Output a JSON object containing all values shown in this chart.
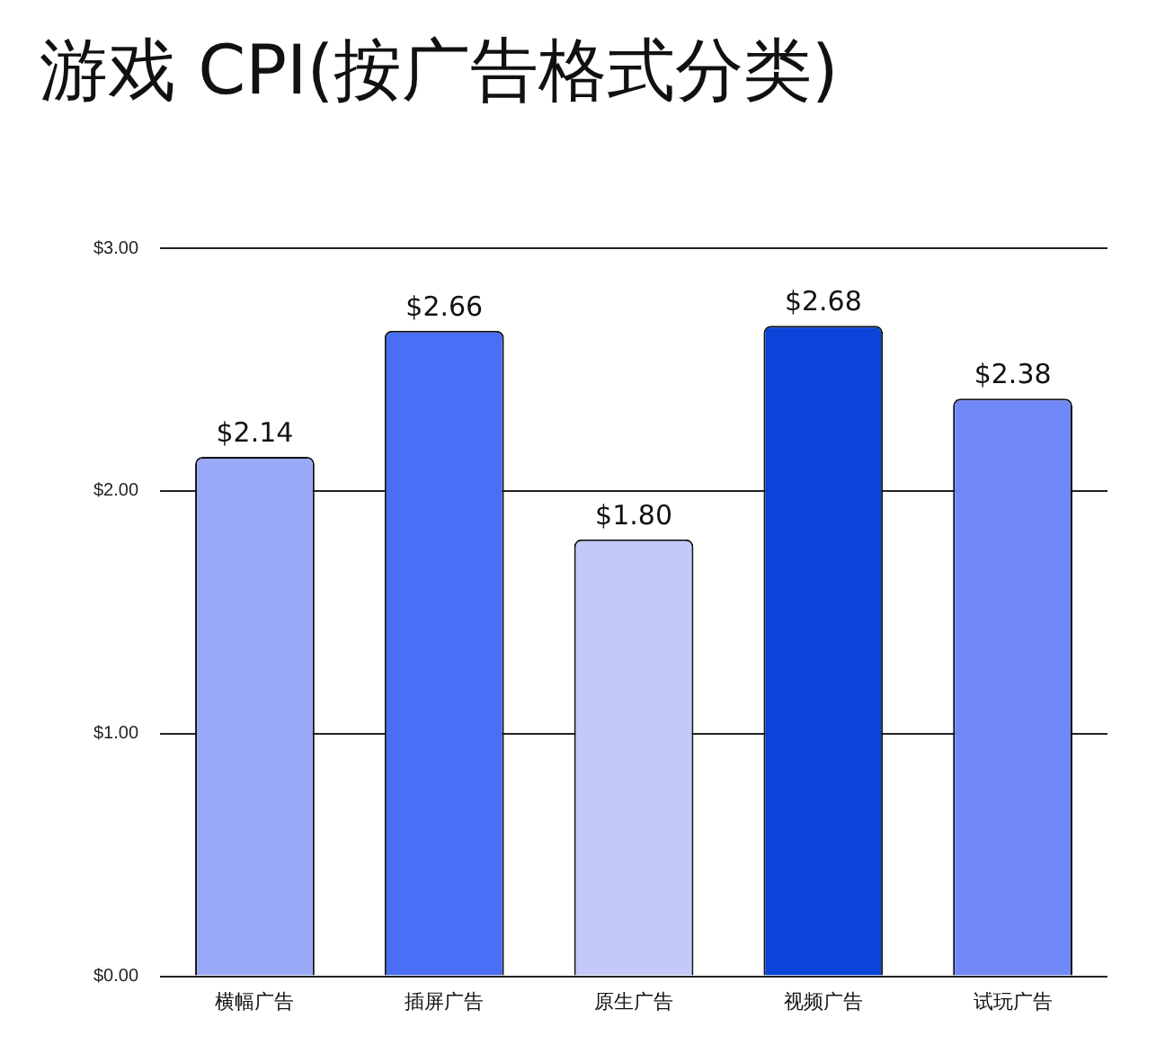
{
  "chart_data": {
    "type": "bar",
    "title": "游戏 CPI(按广告格式分类)",
    "categories": [
      "横幅广告",
      "插屏广告",
      "原生广告",
      "视频广告",
      "试玩广告"
    ],
    "values": [
      2.14,
      2.66,
      1.8,
      2.68,
      2.38
    ],
    "colors": [
      "#9aa8f8",
      "#4a6ef5",
      "#c3c9fa",
      "#0a44d8",
      "#7189f7"
    ],
    "value_labels": [
      "$2.14",
      "$2.66",
      "$1.80",
      "$2.68",
      "$2.38"
    ],
    "ylim": [
      0,
      3
    ],
    "yticks": [
      {
        "value": 0,
        "label": "$0.00"
      },
      {
        "value": 1,
        "label": "$1.00"
      },
      {
        "value": 2,
        "label": "$2.00"
      },
      {
        "value": 3,
        "label": "$3.00"
      }
    ],
    "grid": "y",
    "legend": false
  }
}
